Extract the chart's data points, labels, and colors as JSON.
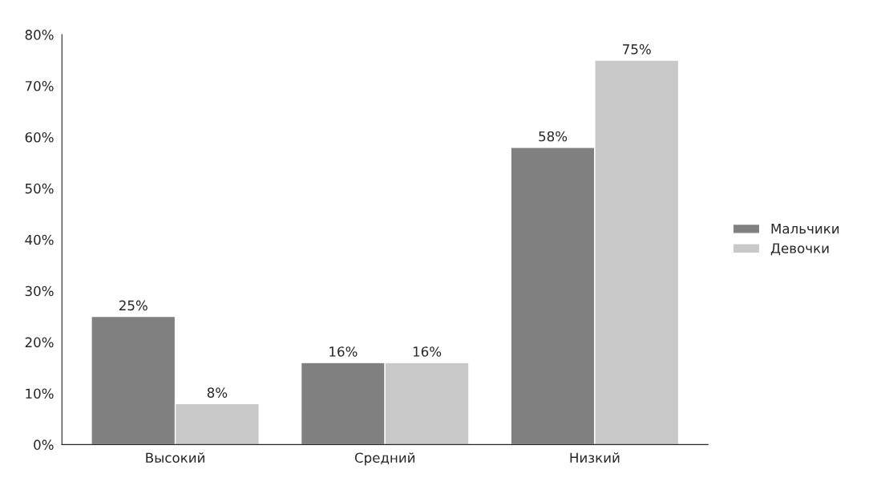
{
  "chart_data": {
    "type": "bar",
    "categories": [
      "Высокий",
      "Средний",
      "Низкий"
    ],
    "series": [
      {
        "name": "Мальчики",
        "color": "#808080",
        "values": [
          25,
          16,
          58
        ],
        "value_labels": [
          "25%",
          "16%",
          "58%"
        ]
      },
      {
        "name": "Девочки",
        "color": "#c8c8c8",
        "values": [
          8,
          16,
          75
        ],
        "value_labels": [
          "8%",
          "16%",
          "75%"
        ]
      }
    ],
    "ylim": [
      0,
      80
    ],
    "yticks": [
      {
        "value": 0,
        "label": "0%"
      },
      {
        "value": 10,
        "label": "10%"
      },
      {
        "value": 20,
        "label": "20%"
      },
      {
        "value": 30,
        "label": "30%"
      },
      {
        "value": 40,
        "label": "40%"
      },
      {
        "value": 50,
        "label": "50%"
      },
      {
        "value": 60,
        "label": "60%"
      },
      {
        "value": 70,
        "label": "70%"
      },
      {
        "value": 80,
        "label": "80%"
      }
    ],
    "grid": false,
    "legend": "right"
  }
}
